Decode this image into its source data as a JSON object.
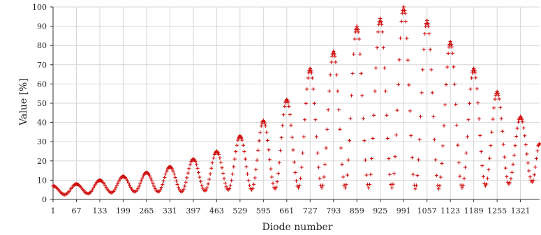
{
  "chart_data": {
    "type": "scatter",
    "title": "",
    "xlabel": "Diode number",
    "ylabel": "Value [%]",
    "xlim": [
      1,
      1375
    ],
    "ylim": [
      0,
      100
    ],
    "x_ticks": [
      1,
      67,
      133,
      199,
      265,
      331,
      397,
      463,
      529,
      595,
      661,
      727,
      793,
      859,
      925,
      991,
      1057,
      1123,
      1189,
      1255,
      1321
    ],
    "y_ticks": [
      0,
      10,
      20,
      30,
      40,
      50,
      60,
      70,
      80,
      90,
      100
    ],
    "grid": true,
    "marker": "plus",
    "marker_color": "#d01010",
    "series": [
      {
        "peaks": [
          {
            "x": 1,
            "y": 7
          },
          {
            "x": 67,
            "y": 8
          },
          {
            "x": 133,
            "y": 10
          },
          {
            "x": 199,
            "y": 12
          },
          {
            "x": 265,
            "y": 14
          },
          {
            "x": 331,
            "y": 17
          },
          {
            "x": 397,
            "y": 21
          },
          {
            "x": 463,
            "y": 25
          },
          {
            "x": 529,
            "y": 33
          },
          {
            "x": 595,
            "y": 41
          },
          {
            "x": 661,
            "y": 52
          },
          {
            "x": 727,
            "y": 68
          },
          {
            "x": 793,
            "y": 77
          },
          {
            "x": 859,
            "y": 90
          },
          {
            "x": 925,
            "y": 94
          },
          {
            "x": 991,
            "y": 100
          },
          {
            "x": 1057,
            "y": 93
          },
          {
            "x": 1123,
            "y": 82
          },
          {
            "x": 1189,
            "y": 68
          },
          {
            "x": 1255,
            "y": 56
          },
          {
            "x": 1321,
            "y": 43
          },
          {
            "x": 1375,
            "y": 29
          }
        ],
        "valleys": [
          {
            "x": 34,
            "y": 2.5
          },
          {
            "x": 100,
            "y": 3
          },
          {
            "x": 166,
            "y": 3.5
          },
          {
            "x": 232,
            "y": 4
          },
          {
            "x": 298,
            "y": 4
          },
          {
            "x": 364,
            "y": 4
          },
          {
            "x": 430,
            "y": 4.5
          },
          {
            "x": 496,
            "y": 5
          },
          {
            "x": 562,
            "y": 5
          },
          {
            "x": 628,
            "y": 5.5
          },
          {
            "x": 694,
            "y": 6
          },
          {
            "x": 760,
            "y": 6
          },
          {
            "x": 826,
            "y": 6
          },
          {
            "x": 892,
            "y": 6
          },
          {
            "x": 958,
            "y": 6
          },
          {
            "x": 1024,
            "y": 5.5
          },
          {
            "x": 1090,
            "y": 5.5
          },
          {
            "x": 1156,
            "y": 6
          },
          {
            "x": 1222,
            "y": 7
          },
          {
            "x": 1288,
            "y": 8
          },
          {
            "x": 1354,
            "y": 9
          }
        ]
      }
    ]
  }
}
